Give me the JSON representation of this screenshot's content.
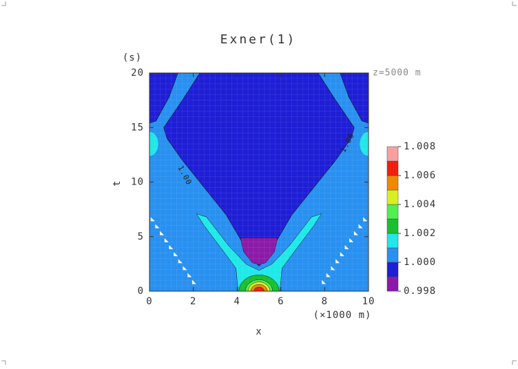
{
  "chart_data": {
    "type": "contour",
    "title": "Exner(1)",
    "x_label": "x",
    "x_unit": "(×1000 m)",
    "y_label": "t",
    "y_unit": "(s)",
    "annotation": "z=5000 m",
    "contour_labels": [
      "1.00",
      "1.00"
    ],
    "xlim": [
      0,
      10
    ],
    "xticks": [
      0,
      2,
      4,
      6,
      8,
      10
    ],
    "ylim": [
      0,
      20
    ],
    "yticks": [
      0,
      5,
      10,
      15,
      20
    ],
    "levels": [
      0.998,
      0.999,
      1.0,
      1.001,
      1.002,
      1.003,
      1.004,
      1.005,
      1.006,
      1.007,
      1.008
    ],
    "colors": [
      "#8c1aa8",
      "#1e1ed6",
      "#2890f0",
      "#20e8e8",
      "#18c030",
      "#50f050",
      "#d8f020",
      "#f08800",
      "#f02010",
      "#f8a0a0"
    ],
    "colorbar_ticks": [
      0.998,
      {
        "value": 1,
        "label": "1.000"
      },
      1.002,
      1.004,
      1.006,
      1.008
    ]
  }
}
